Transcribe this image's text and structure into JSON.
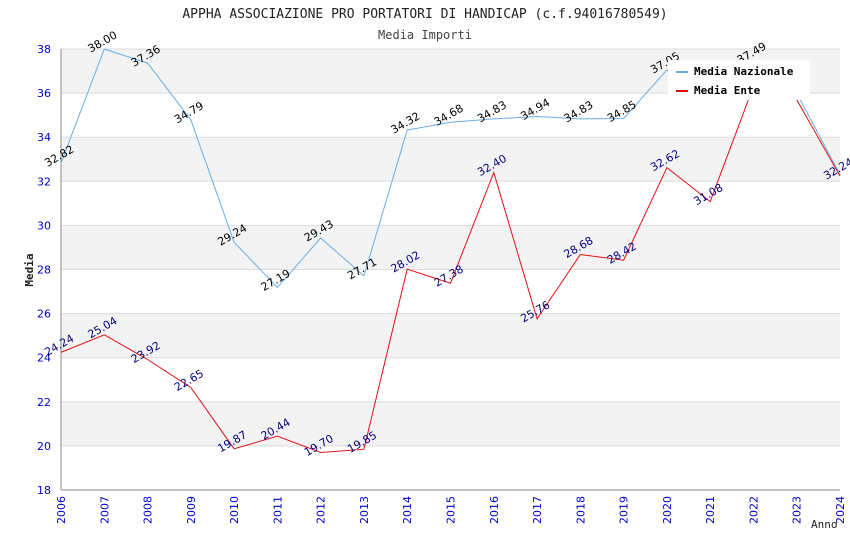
{
  "chart_data": {
    "type": "line",
    "title": "APPHA ASSOCIAZIONE PRO PORTATORI DI HANDICAP (c.f.94016780549)",
    "subtitle": "Media Importi",
    "xlabel": "Anno",
    "ylabel": "Media",
    "ylim": [
      18,
      38
    ],
    "yticks": [
      "18",
      "20",
      "22",
      "24",
      "26",
      "28",
      "30",
      "32",
      "34",
      "36",
      "38"
    ],
    "categories": [
      "2006",
      "2007",
      "2008",
      "2009",
      "2010",
      "2011",
      "2012",
      "2013",
      "2014",
      "2015",
      "2016",
      "2017",
      "2018",
      "2019",
      "2020",
      "2021",
      "2022",
      "2023",
      "2024"
    ],
    "legend_position": "top-right",
    "series": [
      {
        "name": "Media Nazionale",
        "color": "#6aaee6",
        "label_color": "#000000",
        "values": [
          32.82,
          38.0,
          37.36,
          34.79,
          29.24,
          27.19,
          29.43,
          27.71,
          34.32,
          34.68,
          34.83,
          34.94,
          34.83,
          34.85,
          37.05,
          36.2,
          37.49,
          36.0,
          32.3
        ],
        "labels": [
          "32.82",
          "38.00",
          "37.36",
          "34.79",
          "29.24",
          "27.19",
          "29.43",
          "27.71",
          "34.32",
          "34.68",
          "34.83",
          "34.94",
          "34.83",
          "34.85",
          "37.05",
          "",
          "37.49",
          "",
          ""
        ]
      },
      {
        "name": "Media Ente",
        "color": "#e01010",
        "label_color": "#000080",
        "values": [
          24.24,
          25.04,
          23.92,
          22.65,
          19.87,
          20.44,
          19.7,
          19.85,
          28.02,
          27.38,
          32.4,
          25.76,
          28.68,
          28.42,
          32.62,
          31.08,
          36.3,
          35.7,
          32.24
        ],
        "labels": [
          "24.24",
          "25.04",
          "23.92",
          "22.65",
          "19.87",
          "20.44",
          "19.70",
          "19.85",
          "28.02",
          "27.38",
          "32.40",
          "25.76",
          "28.68",
          "28.42",
          "32.62",
          "31.08",
          "",
          "",
          "32.24"
        ]
      }
    ]
  }
}
